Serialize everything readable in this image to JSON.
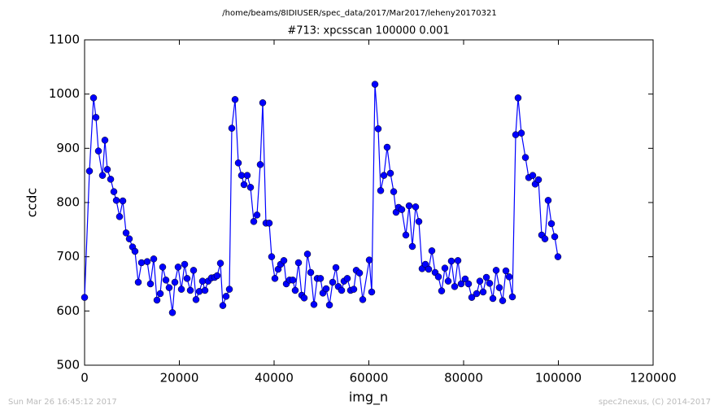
{
  "chart_data": {
    "type": "line",
    "suptitle": "/home/beams/8IDIUSER/spec_data/2017/Mar2017/leheny20170321",
    "title": "#713: xpcsscan 100000 0.001",
    "xlabel": "img_n",
    "ylabel": "ccdc",
    "color": "#0000ff",
    "marker": "circle",
    "x": [
      0,
      1030,
      1890,
      2400,
      2920,
      3780,
      4290,
      4800,
      5500,
      6180,
      6700,
      7380,
      8070,
      8760,
      9440,
      10130,
      10640,
      11330,
      12020,
      13220,
      13900,
      14590,
      15280,
      15970,
      16480,
      17170,
      17850,
      18540,
      19060,
      19740,
      20430,
      21120,
      21630,
      22320,
      23000,
      23520,
      24210,
      24890,
      25410,
      26090,
      26780,
      27470,
      27980,
      28670,
      29180,
      29870,
      30560,
      31070,
      31760,
      32450,
      33130,
      33650,
      34330,
      35020,
      35710,
      36390,
      37080,
      37600,
      38280,
      38970,
      39480,
      40170,
      40860,
      41370,
      42060,
      42580,
      43260,
      43950,
      44460,
      45150,
      45840,
      46350,
      47040,
      47730,
      48410,
      49100,
      49790,
      50300,
      50990,
      51680,
      52360,
      53050,
      53560,
      54250,
      54760,
      55450,
      56140,
      56820,
      57340,
      58030,
      58710,
      60090,
      60600,
      61290,
      61970,
      62490,
      63180,
      63860,
      64550,
      65240,
      65750,
      66270,
      66950,
      67810,
      68500,
      69180,
      69870,
      70560,
      71240,
      71930,
      72620,
      73300,
      73990,
      74680,
      75360,
      76050,
      76740,
      77420,
      78110,
      78800,
      79480,
      80340,
      81030,
      81720,
      82750,
      83430,
      84120,
      84810,
      85490,
      86180,
      86870,
      87550,
      88240,
      88930,
      89610,
      90300,
      90990,
      91500,
      92190,
      93050,
      93740,
      94590,
      95110,
      95800,
      96480,
      97170,
      97850,
      98540,
      99230,
      99910
    ],
    "values": [
      625,
      858,
      993,
      957,
      895,
      850,
      915,
      861,
      843,
      820,
      804,
      774,
      803,
      744,
      733,
      718,
      710,
      653,
      689,
      691,
      650,
      696,
      620,
      632,
      681,
      657,
      643,
      597,
      653,
      681,
      640,
      686,
      660,
      638,
      675,
      621,
      636,
      655,
      638,
      655,
      661,
      662,
      665,
      688,
      610,
      627,
      640,
      937,
      990,
      873,
      850,
      833,
      850,
      828,
      765,
      777,
      870,
      984,
      762,
      762,
      700,
      660,
      677,
      686,
      693,
      650,
      657,
      657,
      638,
      689,
      629,
      624,
      705,
      671,
      612,
      660,
      660,
      633,
      641,
      611,
      653,
      680,
      645,
      638,
      655,
      660,
      638,
      640,
      675,
      670,
      621,
      694,
      635,
      1018,
      936,
      822,
      850,
      902,
      854,
      820,
      782,
      791,
      787,
      740,
      794,
      719,
      792,
      765,
      678,
      686,
      677,
      711,
      671,
      663,
      637,
      679,
      655,
      692,
      645,
      693,
      650,
      659,
      650,
      625,
      632,
      655,
      635,
      662,
      651,
      623,
      675,
      643,
      619,
      674,
      663,
      626,
      925,
      993,
      928,
      883,
      846,
      850,
      834,
      842,
      740,
      733,
      804,
      761,
      737,
      700
    ],
    "xlim": [
      0,
      120000
    ],
    "xticks": [
      0,
      20000,
      40000,
      60000,
      80000,
      100000,
      120000
    ],
    "ylim": [
      500,
      1100
    ],
    "yticks": [
      500,
      600,
      700,
      800,
      900,
      1000,
      1100
    ]
  },
  "footer": {
    "left": "Sun Mar 26 16:45:12 2017",
    "right": "spec2nexus, (C) 2014-2017"
  }
}
